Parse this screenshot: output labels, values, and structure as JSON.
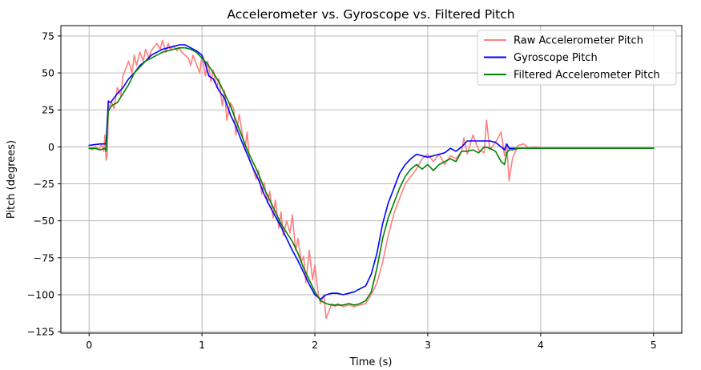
{
  "chart_data": {
    "type": "line",
    "title": "Accelerometer vs. Gyroscope vs. Filtered Pitch",
    "xlabel": "Time (s)",
    "ylabel": "Pitch (degrees)",
    "xlim": [
      -0.25,
      5.25
    ],
    "ylim": [
      -126,
      82
    ],
    "xticks": [
      0,
      1,
      2,
      3,
      4,
      5
    ],
    "xtick_labels": [
      "0",
      "1",
      "2",
      "3",
      "4",
      "5"
    ],
    "yticks": [
      -125,
      -100,
      -75,
      -50,
      -25,
      0,
      25,
      50,
      75
    ],
    "ytick_labels": [
      "−125",
      "−100",
      "−75",
      "−50",
      "−25",
      "0",
      "25",
      "50",
      "75"
    ],
    "grid": true,
    "legend_position": "upper right",
    "series": [
      {
        "name": "Raw Accelerometer Pitch",
        "color": "#ff7f7f",
        "x": [
          0.0,
          0.03,
          0.06,
          0.09,
          0.11,
          0.13,
          0.14,
          0.15,
          0.16,
          0.17,
          0.18,
          0.2,
          0.22,
          0.25,
          0.28,
          0.3,
          0.32,
          0.35,
          0.38,
          0.4,
          0.42,
          0.45,
          0.48,
          0.5,
          0.53,
          0.55,
          0.58,
          0.6,
          0.63,
          0.65,
          0.68,
          0.7,
          0.72,
          0.75,
          0.78,
          0.8,
          0.82,
          0.85,
          0.88,
          0.9,
          0.92,
          0.95,
          0.98,
          1.0,
          1.03,
          1.05,
          1.08,
          1.1,
          1.13,
          1.15,
          1.18,
          1.2,
          1.22,
          1.25,
          1.28,
          1.3,
          1.33,
          1.35,
          1.38,
          1.4,
          1.42,
          1.45,
          1.48,
          1.5,
          1.53,
          1.55,
          1.58,
          1.6,
          1.63,
          1.65,
          1.68,
          1.7,
          1.72,
          1.75,
          1.78,
          1.8,
          1.83,
          1.85,
          1.88,
          1.9,
          1.92,
          1.95,
          1.98,
          2.0,
          2.03,
          2.05,
          2.08,
          2.1,
          2.13,
          2.15,
          2.18,
          2.2,
          2.25,
          2.3,
          2.35,
          2.4,
          2.45,
          2.5,
          2.55,
          2.6,
          2.65,
          2.7,
          2.75,
          2.8,
          2.85,
          2.9,
          2.95,
          3.0,
          3.05,
          3.1,
          3.15,
          3.2,
          3.25,
          3.3,
          3.32,
          3.35,
          3.4,
          3.45,
          3.5,
          3.52,
          3.55,
          3.6,
          3.65,
          3.68,
          3.7,
          3.72,
          3.75,
          3.8,
          3.85,
          3.9,
          3.95,
          4.0,
          4.2,
          4.5,
          4.8,
          5.0
        ],
        "y": [
          -1,
          -2,
          0,
          -2,
          2,
          -3,
          8,
          -9,
          -6,
          24,
          28,
          30,
          26,
          40,
          35,
          48,
          52,
          58,
          50,
          62,
          55,
          64,
          58,
          66,
          60,
          65,
          68,
          70,
          66,
          72,
          64,
          70,
          66,
          68,
          65,
          67,
          64,
          62,
          60,
          55,
          62,
          56,
          50,
          62,
          48,
          58,
          44,
          52,
          40,
          46,
          28,
          38,
          18,
          30,
          26,
          8,
          22,
          12,
          -2,
          10,
          -8,
          -14,
          -22,
          -16,
          -32,
          -24,
          -38,
          -30,
          -48,
          -36,
          -55,
          -44,
          -60,
          -50,
          -58,
          -46,
          -70,
          -62,
          -78,
          -74,
          -92,
          -70,
          -90,
          -80,
          -100,
          -106,
          -100,
          -116,
          -110,
          -106,
          -108,
          -106,
          -108,
          -107,
          -108,
          -107,
          -106,
          -100,
          -92,
          -78,
          -60,
          -45,
          -35,
          -25,
          -20,
          -15,
          -8,
          -5,
          -10,
          -5,
          -12,
          -6,
          -8,
          -3,
          6,
          -5,
          8,
          -2,
          -4,
          18,
          -2,
          3,
          10,
          -6,
          2,
          -23,
          -8,
          1,
          2,
          -1,
          0,
          -1,
          -1,
          -1,
          -1,
          -1
        ]
      },
      {
        "name": "Gyroscope Pitch",
        "color": "#0000ff",
        "x": [
          0.0,
          0.05,
          0.1,
          0.15,
          0.17,
          0.19,
          0.21,
          0.25,
          0.3,
          0.35,
          0.4,
          0.45,
          0.5,
          0.55,
          0.6,
          0.65,
          0.7,
          0.75,
          0.8,
          0.85,
          0.9,
          0.95,
          1.0,
          1.03,
          1.06,
          1.1,
          1.15,
          1.2,
          1.25,
          1.3,
          1.35,
          1.4,
          1.45,
          1.5,
          1.55,
          1.6,
          1.65,
          1.7,
          1.75,
          1.8,
          1.85,
          1.9,
          1.95,
          2.0,
          2.05,
          2.1,
          2.15,
          2.2,
          2.25,
          2.3,
          2.35,
          2.4,
          2.45,
          2.5,
          2.55,
          2.6,
          2.65,
          2.7,
          2.75,
          2.8,
          2.85,
          2.9,
          2.95,
          3.0,
          3.05,
          3.1,
          3.15,
          3.2,
          3.25,
          3.3,
          3.35,
          3.4,
          3.45,
          3.5,
          3.55,
          3.6,
          3.65,
          3.68,
          3.7,
          3.72,
          3.75,
          3.8,
          3.85,
          3.9,
          4.0,
          4.2,
          4.5,
          4.8,
          5.0
        ],
        "y": [
          1,
          1.5,
          2,
          2,
          31,
          30,
          32,
          36,
          40,
          46,
          50,
          55,
          58,
          62,
          64,
          66,
          67,
          68,
          69,
          69,
          67,
          65,
          62,
          56,
          48,
          46,
          38,
          33,
          22,
          14,
          4,
          -5,
          -14,
          -22,
          -32,
          -40,
          -47,
          -54,
          -62,
          -70,
          -77,
          -85,
          -93,
          -100,
          -103,
          -100,
          -99,
          -99,
          -100,
          -99,
          -98,
          -96,
          -94,
          -86,
          -72,
          -52,
          -38,
          -28,
          -18,
          -12,
          -8,
          -5,
          -6,
          -7,
          -6,
          -5,
          -4,
          -1,
          -3,
          0,
          4,
          4,
          4,
          4,
          4,
          3,
          0,
          -2,
          2,
          -1,
          -1,
          -1,
          -1,
          -1,
          -1,
          -1,
          -1,
          -1,
          -1
        ]
      },
      {
        "name": "Filtered Accelerometer Pitch",
        "color": "#008000",
        "x": [
          0.0,
          0.05,
          0.1,
          0.14,
          0.15,
          0.16,
          0.17,
          0.2,
          0.25,
          0.3,
          0.35,
          0.4,
          0.45,
          0.5,
          0.55,
          0.6,
          0.65,
          0.7,
          0.75,
          0.8,
          0.85,
          0.9,
          0.95,
          1.0,
          1.05,
          1.1,
          1.15,
          1.2,
          1.25,
          1.3,
          1.35,
          1.4,
          1.45,
          1.5,
          1.55,
          1.6,
          1.65,
          1.7,
          1.75,
          1.8,
          1.85,
          1.9,
          1.95,
          2.0,
          2.05,
          2.1,
          2.15,
          2.2,
          2.25,
          2.3,
          2.35,
          2.4,
          2.45,
          2.5,
          2.55,
          2.6,
          2.65,
          2.7,
          2.75,
          2.8,
          2.85,
          2.9,
          2.95,
          3.0,
          3.05,
          3.1,
          3.15,
          3.2,
          3.25,
          3.3,
          3.35,
          3.4,
          3.45,
          3.5,
          3.55,
          3.6,
          3.65,
          3.68,
          3.7,
          3.72,
          3.75,
          3.8,
          3.85,
          3.9,
          4.0,
          4.2,
          4.5,
          4.8,
          5.0
        ],
        "y": [
          -1,
          -1,
          -2,
          -1,
          -3,
          10,
          24,
          28,
          30,
          36,
          42,
          50,
          54,
          58,
          60,
          62,
          64,
          65,
          66,
          67,
          67,
          66,
          64,
          60,
          56,
          50,
          44,
          36,
          28,
          18,
          8,
          -2,
          -10,
          -18,
          -28,
          -36,
          -44,
          -52,
          -58,
          -64,
          -72,
          -82,
          -90,
          -98,
          -104,
          -106,
          -107,
          -107,
          -107,
          -106,
          -107,
          -106,
          -104,
          -98,
          -82,
          -62,
          -48,
          -38,
          -28,
          -20,
          -15,
          -12,
          -15,
          -12,
          -16,
          -12,
          -10,
          -8,
          -10,
          -3,
          -3,
          -2,
          -4,
          0,
          -1,
          -3,
          -10,
          -12,
          -4,
          -2,
          -2,
          -1,
          -1,
          -1,
          -1,
          -1,
          -1,
          -1,
          -1
        ]
      }
    ]
  }
}
